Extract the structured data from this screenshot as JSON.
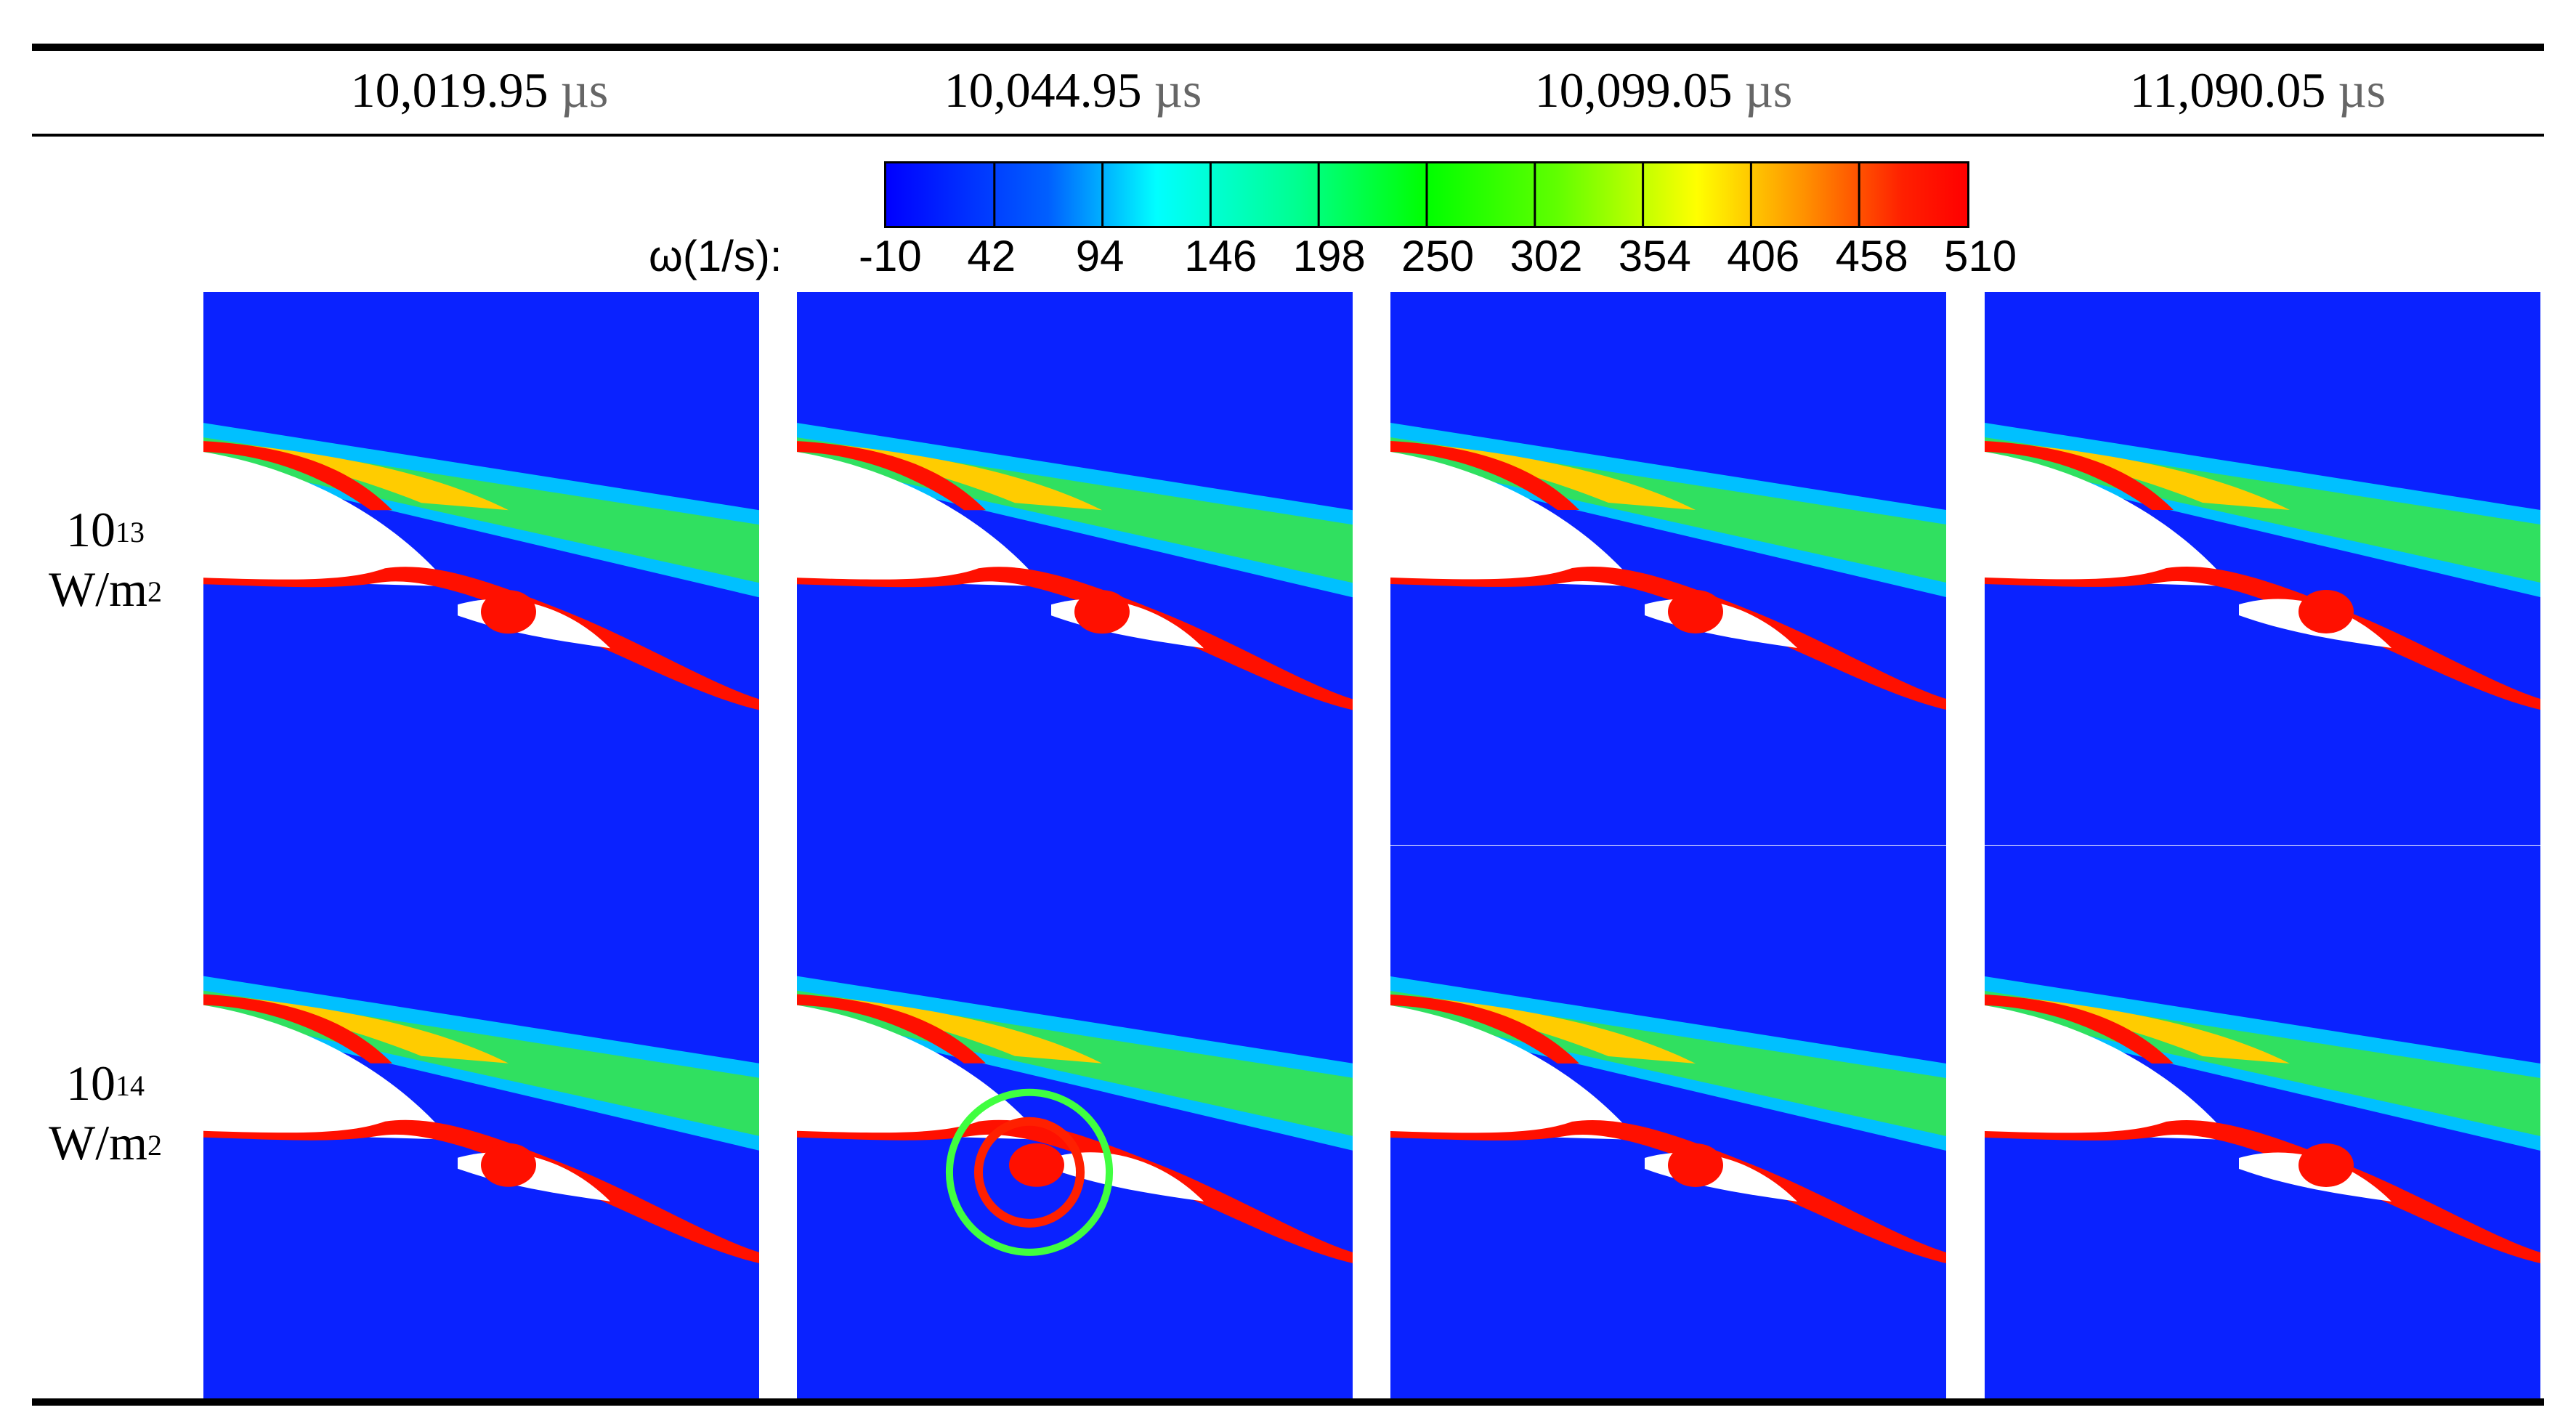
{
  "header": {
    "times": [
      {
        "value": "10,019.95",
        "unit": "µs"
      },
      {
        "value": "10,044.95",
        "unit": "µs"
      },
      {
        "value": "10,099.05",
        "unit": "µs"
      },
      {
        "value": "11,090.05",
        "unit": "µs"
      }
    ]
  },
  "rows": [
    {
      "base": "10",
      "exp": "13",
      "unit": "W/m",
      "unit_exp": "2"
    },
    {
      "base": "10",
      "exp": "14",
      "unit": "W/m",
      "unit_exp": "2"
    }
  ],
  "colorbar": {
    "label": "ω(1/s):",
    "ticks": [
      "-10",
      "42",
      "94",
      "146",
      "198",
      "250",
      "302",
      "354",
      "406",
      "458",
      "510"
    ],
    "colors": [
      "#0000ff",
      "#0080ff",
      "#00ffff",
      "#00ff80",
      "#00ff00",
      "#80ff00",
      "#ffff00",
      "#ff8000",
      "#ff0000"
    ]
  }
}
